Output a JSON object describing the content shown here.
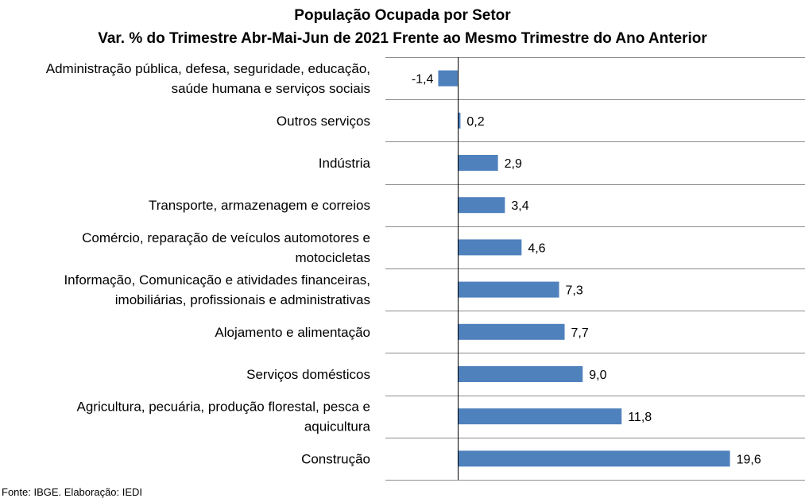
{
  "chart_data": {
    "type": "bar",
    "orientation": "horizontal",
    "title": "População Ocupada por Setor",
    "subtitle": "Var. % do Trimestre Abr-Mai-Jun de 2021 Frente ao Mesmo Trimestre do Ano Anterior",
    "categories": [
      [
        "Administração pública, defesa, seguridade, educação,",
        "saúde humana e serviços sociais"
      ],
      [
        "Outros serviços"
      ],
      [
        "Indústria"
      ],
      [
        "Transporte, armazenagem e correios"
      ],
      [
        "Comércio, reparação de veículos automotores e",
        "motocicletas"
      ],
      [
        "Informação, Comunicação e atividades financeiras,",
        "imobiliárias, profissionais e administrativas"
      ],
      [
        "Alojamento e alimentação"
      ],
      [
        "Serviços domésticos"
      ],
      [
        "Agricultura, pecuária, produção florestal, pesca e",
        "aquicultura"
      ],
      [
        "Construção"
      ]
    ],
    "values": [
      -1.4,
      0.2,
      2.9,
      3.4,
      4.6,
      7.3,
      7.7,
      9.0,
      11.8,
      19.6
    ],
    "value_labels": [
      "-1,4",
      "0,2",
      "2,9",
      "3,4",
      "4,6",
      "7,3",
      "7,7",
      "9,0",
      "11,8",
      "19,6"
    ],
    "xlim": [
      -5.2,
      25
    ],
    "grid": true,
    "bar_color": "#4f81bd",
    "grid_color": "#8c8c8c",
    "source": "Fonte: IBGE. Elaboração: IEDI"
  }
}
